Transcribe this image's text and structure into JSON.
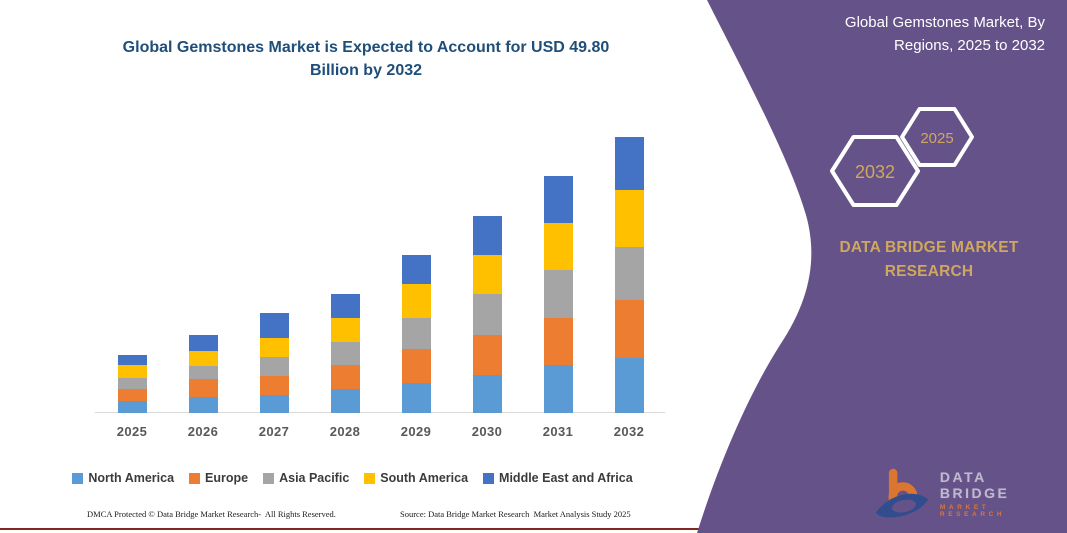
{
  "chart": {
    "title": "Global Gemstones Market is Expected to Account for USD 49.80 Billion by 2032",
    "footer_left": "DMCA Protected © Data Bridge Market Research-  All Rights Reserved.",
    "footer_right": "Source: Data Bridge Market Research  Market Analysis Study 2025"
  },
  "chart_data": {
    "type": "bar",
    "stacked": true,
    "title": "Global Gemstones Market is Expected to Account for USD 49.80 Billion by 2032",
    "unit": "USD Billion",
    "categories": [
      "2025",
      "2026",
      "2027",
      "2028",
      "2029",
      "2030",
      "2031",
      "2032"
    ],
    "series": [
      {
        "name": "North America",
        "color": "#5B9BD5",
        "values": [
          2.2,
          2.9,
          3.3,
          4.3,
          5.4,
          6.9,
          8.6,
          9.9
        ]
      },
      {
        "name": "Europe",
        "color": "#ED7D31",
        "values": [
          2.2,
          3.3,
          3.3,
          4.3,
          6.1,
          7.2,
          8.6,
          10.5
        ]
      },
      {
        "name": "Asia Pacific",
        "color": "#A5A5A5",
        "values": [
          2.0,
          2.2,
          3.6,
          4.3,
          5.6,
          7.3,
          8.6,
          9.6
        ]
      },
      {
        "name": "South America",
        "color": "#FFC000",
        "values": [
          2.2,
          2.8,
          3.4,
          4.3,
          6.2,
          7.2,
          8.5,
          10.2
        ]
      },
      {
        "name": "Middle East and Africa",
        "color": "#4472C4",
        "values": [
          1.9,
          2.9,
          4.4,
          4.3,
          5.2,
          6.9,
          8.5,
          9.6
        ]
      }
    ],
    "totals": [
      10.5,
      14.1,
      18.0,
      21.5,
      28.5,
      35.5,
      42.8,
      49.8
    ],
    "ylim": [
      0,
      49.8
    ],
    "axis_labels_visible": false,
    "gridlines": false,
    "legend_position": "bottom"
  },
  "side_panel": {
    "title": "Global Gemstones Market, By Regions, 2025 to 2032",
    "hexagon_left_year": "2032",
    "hexagon_right_year": "2025",
    "brand_text": "DATA BRIDGE MARKET RESEARCH",
    "colors": {
      "panel_purple": "#655289",
      "accent_gold": "#cfa75f"
    }
  },
  "logo": {
    "line1": "DATA BRIDGE",
    "line2": "MARKET RESEARCH"
  }
}
